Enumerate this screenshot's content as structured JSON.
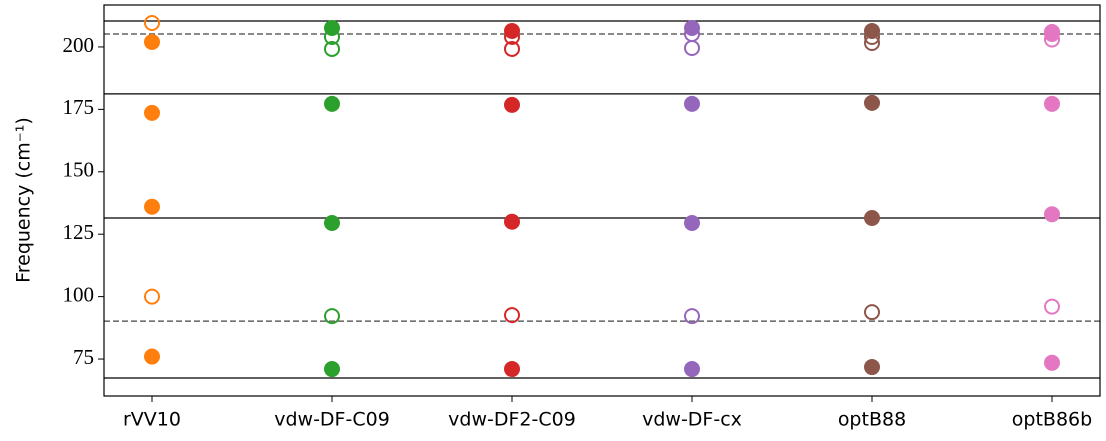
{
  "chart_data": {
    "type": "scatter",
    "y_label": "Frequency (cm⁻¹)",
    "categories": [
      "rVV10",
      "vdw-DF-C09",
      "vdw-DF2-C09",
      "vdw-DF-cx",
      "optB88",
      "optB86b"
    ],
    "ylim": [
      60.2,
      216.8
    ],
    "yticks": [
      75,
      100,
      125,
      150,
      175,
      200
    ],
    "series": [
      {
        "color": "#ff7f0e",
        "filled": [
          202,
          173.6,
          136,
          76
        ],
        "open": [
          209.6,
          100
        ]
      },
      {
        "color": "#2ca02c",
        "filled": [
          207.6,
          177.2,
          129.5,
          71
        ],
        "open": [
          204,
          199.2,
          92.2
        ]
      },
      {
        "color": "#d62728",
        "filled": [
          206.4,
          176.8,
          130,
          71
        ],
        "open": [
          204,
          199.2,
          92.6
        ]
      },
      {
        "color": "#9467bd",
        "filled": [
          207.6,
          177.2,
          129.5,
          71
        ],
        "open": [
          205.2,
          199.6,
          92.2
        ]
      },
      {
        "color": "#8c564b",
        "filled": [
          206.4,
          177.6,
          131.5,
          71.8
        ],
        "open": [
          204,
          201.6,
          93.8
        ]
      },
      {
        "color": "#e377c2",
        "filled": [
          205.2,
          177.2,
          133,
          73.5
        ],
        "open": [
          206,
          203,
          96
        ]
      }
    ],
    "hlines": [
      {
        "value": 210.4,
        "style": "solid"
      },
      {
        "value": 205.2,
        "style": "dashed"
      },
      {
        "value": 181.2,
        "style": "solid"
      },
      {
        "value": 131.5,
        "style": "solid"
      },
      {
        "value": 90.2,
        "style": "dashed"
      },
      {
        "value": 67.4,
        "style": "solid"
      }
    ]
  }
}
